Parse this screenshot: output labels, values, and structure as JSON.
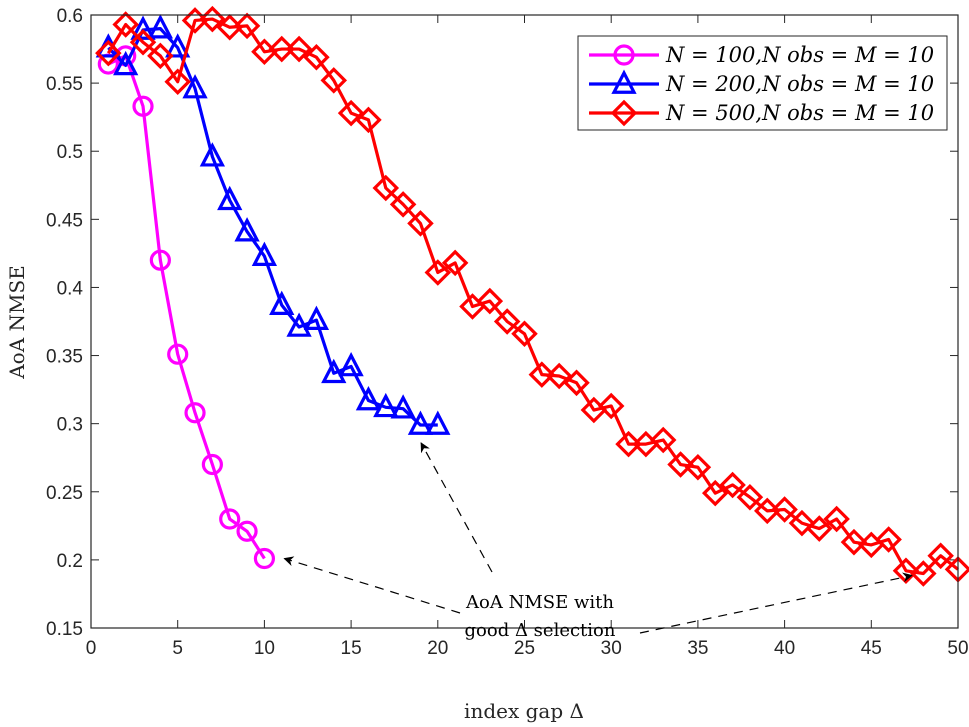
{
  "chart_data": {
    "type": "line",
    "xlabel": "index gap Δ",
    "ylabel": "AoA NMSE",
    "xlim": [
      0,
      50
    ],
    "ylim": [
      0.15,
      0.6
    ],
    "xticks": [
      0,
      5,
      10,
      15,
      20,
      25,
      30,
      35,
      40,
      45,
      50
    ],
    "yticks": [
      0.15,
      0.2,
      0.25,
      0.3,
      0.35,
      0.4,
      0.45,
      0.5,
      0.55,
      0.6
    ],
    "xtick_labels": [
      "0",
      "5",
      "10",
      "15",
      "20",
      "25",
      "30",
      "35",
      "40",
      "45",
      "50"
    ],
    "ytick_labels": [
      "0.15",
      "0.2",
      "0.25",
      "0.3",
      "0.35",
      "0.4",
      "0.45",
      "0.5",
      "0.55",
      "0.6"
    ],
    "legend_position": "top-right",
    "series": [
      {
        "name": "N = 100, N_obs = M = 10",
        "legend_label": "N = 100,N obs = M = 10",
        "color": "#ff00ff",
        "marker": "circle",
        "x": [
          1,
          2,
          3,
          4,
          5,
          6,
          7,
          8,
          9,
          10
        ],
        "values": [
          0.564,
          0.57,
          0.533,
          0.42,
          0.351,
          0.308,
          0.27,
          0.23,
          0.221,
          0.201
        ]
      },
      {
        "name": "N = 200, N_obs = M = 10",
        "legend_label": "N = 200,N obs = M = 10",
        "color": "#0000ff",
        "marker": "triangle",
        "x": [
          1,
          2,
          3,
          4,
          5,
          6,
          7,
          8,
          9,
          10,
          11,
          12,
          13,
          14,
          15,
          16,
          17,
          18,
          19,
          20
        ],
        "values": [
          0.576,
          0.563,
          0.589,
          0.59,
          0.576,
          0.546,
          0.496,
          0.464,
          0.441,
          0.423,
          0.387,
          0.371,
          0.376,
          0.337,
          0.342,
          0.317,
          0.312,
          0.311,
          0.299,
          0.299
        ]
      },
      {
        "name": "N = 500, N_obs = M = 10",
        "legend_label": "N = 500,N obs = M = 10",
        "color": "#ff0000",
        "marker": "diamond",
        "x": [
          1,
          2,
          3,
          4,
          5,
          6,
          7,
          8,
          9,
          10,
          11,
          12,
          13,
          14,
          15,
          16,
          17,
          18,
          19,
          20,
          21,
          22,
          23,
          24,
          25,
          26,
          27,
          28,
          29,
          30,
          31,
          32,
          33,
          34,
          35,
          36,
          37,
          38,
          39,
          40,
          41,
          42,
          43,
          44,
          45,
          46,
          47,
          48,
          49,
          50
        ],
        "values": [
          0.572,
          0.593,
          0.58,
          0.57,
          0.551,
          0.596,
          0.597,
          0.591,
          0.592,
          0.573,
          0.575,
          0.575,
          0.569,
          0.552,
          0.528,
          0.523,
          0.473,
          0.461,
          0.447,
          0.411,
          0.418,
          0.386,
          0.39,
          0.375,
          0.366,
          0.336,
          0.335,
          0.33,
          0.31,
          0.313,
          0.285,
          0.285,
          0.288,
          0.27,
          0.268,
          0.249,
          0.255,
          0.246,
          0.236,
          0.237,
          0.227,
          0.223,
          0.23,
          0.213,
          0.211,
          0.215,
          0.192,
          0.19,
          0.203,
          0.193
        ]
      }
    ],
    "annotation": {
      "lines": [
        "AoA NMSE with",
        "good Δ selection"
      ],
      "targets": [
        [
          10,
          0.201
        ],
        [
          19.5,
          0.299
        ],
        [
          47.8,
          0.19
        ]
      ]
    }
  }
}
